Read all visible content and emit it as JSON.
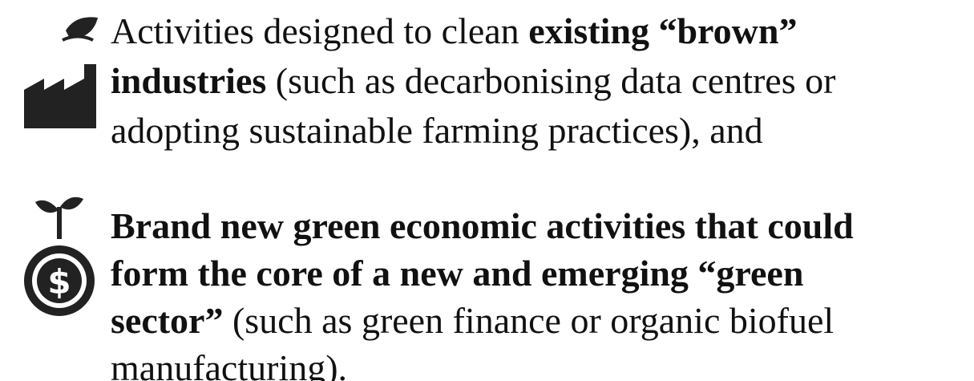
{
  "items": [
    {
      "lines": [
        [
          {
            "text": "Activities designed to clean ",
            "bold": false
          },
          {
            "text": "existing “brown”",
            "bold": true
          }
        ],
        [
          {
            "text": "industries",
            "bold": true
          },
          {
            "text": " (such as decarbonising data centres or",
            "bold": false
          }
        ],
        [
          {
            "text": "adopting sustainable farming practices), and",
            "bold": false
          }
        ]
      ]
    },
    {
      "lines": [
        [
          {
            "text": "Brand new green economic activities that could",
            "bold": true
          }
        ],
        [
          {
            "text": "form the core of a new and emerging “green",
            "bold": true
          }
        ],
        [
          {
            "text": "sector”",
            "bold": true
          },
          {
            "text": " (such as green finance or organic biofuel",
            "bold": false
          }
        ],
        [
          {
            "text": "manufacturing).",
            "bold": false
          }
        ]
      ]
    }
  ]
}
